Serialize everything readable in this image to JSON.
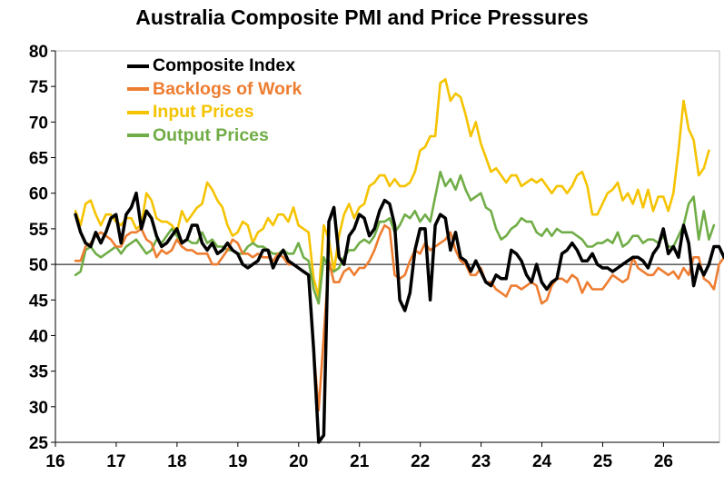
{
  "chart_data": {
    "type": "line",
    "title": "Australia Composite PMI and Price Pressures",
    "xlabel": "",
    "ylabel": "",
    "xlim": [
      2016.0,
      2026.92
    ],
    "ylim": [
      25,
      80
    ],
    "x_ticks": [
      2016,
      2017,
      2018,
      2019,
      2020,
      2021,
      2022,
      2023,
      2024,
      2025,
      2026
    ],
    "x_tick_labels": [
      "16",
      "17",
      "18",
      "19",
      "20",
      "21",
      "22",
      "23",
      "24",
      "25",
      "26"
    ],
    "y_ticks": [
      25,
      30,
      35,
      40,
      45,
      50,
      55,
      60,
      65,
      70,
      75,
      80
    ],
    "y_tick_labels": [
      "25",
      "30",
      "35",
      "40",
      "45",
      "50",
      "55",
      "60",
      "65",
      "70",
      "75",
      "80"
    ],
    "reference_line": 50,
    "grid": false,
    "legend_position": "top-left",
    "x_start": 2016.33,
    "x_step": 0.08333,
    "series": [
      {
        "name": "Composite Index",
        "color": "#000000",
        "values": [
          57.0,
          54.5,
          53.0,
          52.5,
          54.5,
          53.0,
          54.5,
          56.5,
          57.0,
          53.0,
          57.0,
          58.0,
          60.0,
          55.0,
          57.5,
          56.5,
          54.0,
          52.5,
          53.0,
          54.0,
          55.0,
          53.0,
          53.5,
          55.5,
          55.5,
          53.0,
          52.0,
          53.0,
          51.5,
          52.0,
          53.0,
          52.0,
          51.5,
          50.0,
          49.5,
          50.0,
          50.5,
          52.0,
          52.0,
          49.5,
          51.0,
          52.0,
          50.5,
          50.0,
          49.5,
          49.0,
          48.5,
          38.0,
          25.0,
          26.0,
          56.0,
          58.0,
          51.0,
          50.0,
          54.0,
          55.0,
          57.0,
          56.5,
          54.0,
          55.0,
          57.5,
          59.0,
          58.5,
          55.5,
          45.0,
          43.5,
          46.0,
          52.0,
          55.0,
          55.0,
          45.0,
          55.5,
          57.0,
          56.5,
          52.0,
          54.5,
          51.0,
          50.5,
          49.0,
          50.5,
          49.0,
          47.5,
          47.0,
          48.5,
          48.0,
          48.0,
          52.0,
          51.5,
          50.5,
          48.5,
          47.5,
          50.0,
          47.5,
          46.5,
          47.5,
          48.0,
          51.5,
          52.0,
          53.0,
          52.0,
          50.5,
          50.5,
          51.5,
          50.0,
          49.5,
          49.5,
          49.0,
          49.5,
          50.0,
          50.5,
          51.0,
          51.0,
          50.5,
          49.5,
          51.5,
          52.5,
          55.0,
          51.5,
          52.5,
          51.0,
          55.5,
          53.0,
          47.0,
          50.0,
          48.5,
          50.0,
          52.5,
          52.5,
          51.0
        ]
      },
      {
        "name": "Backlogs of Work",
        "color": "#ED7D31",
        "values": [
          50.5,
          50.5,
          52.5,
          53.0,
          54.0,
          54.5,
          54.0,
          53.5,
          52.5,
          52.5,
          54.0,
          54.5,
          54.5,
          55.0,
          53.5,
          53.0,
          51.0,
          52.0,
          51.5,
          52.0,
          53.5,
          52.5,
          52.0,
          52.0,
          51.5,
          51.5,
          51.5,
          50.0,
          50.0,
          51.0,
          52.0,
          53.5,
          53.0,
          51.5,
          51.5,
          51.0,
          51.5,
          51.0,
          51.0,
          50.5,
          51.5,
          51.0,
          50.0,
          50.0,
          49.5,
          49.0,
          48.5,
          38.0,
          29.5,
          40.0,
          50.5,
          47.5,
          47.5,
          49.0,
          49.5,
          48.5,
          49.5,
          49.5,
          50.5,
          52.0,
          54.0,
          55.5,
          55.0,
          48.5,
          48.0,
          48.5,
          50.5,
          52.0,
          51.5,
          53.0,
          52.0,
          52.5,
          53.0,
          53.5,
          54.5,
          52.0,
          50.5,
          50.0,
          48.5,
          48.5,
          49.5,
          47.5,
          47.5,
          46.5,
          46.0,
          45.5,
          47.0,
          47.0,
          46.5,
          47.0,
          47.5,
          47.0,
          44.5,
          45.0,
          47.0,
          48.0,
          48.0,
          47.5,
          48.5,
          48.0,
          46.0,
          47.5,
          46.5,
          46.5,
          46.5,
          47.5,
          48.5,
          48.0,
          47.5,
          48.0,
          51.0,
          49.5,
          49.0,
          48.5,
          48.5,
          49.5,
          49.0,
          48.5,
          49.0,
          48.0,
          49.5,
          48.5,
          51.0,
          51.0,
          48.0,
          47.5,
          46.5,
          50.0,
          51.0,
          50.5,
          51.0
        ]
      },
      {
        "name": "Input Prices",
        "color": "#F5C300",
        "values": [
          57.5,
          55.5,
          58.5,
          59.0,
          57.0,
          55.5,
          57.0,
          57.0,
          56.0,
          55.5,
          56.5,
          56.5,
          55.0,
          55.5,
          60.0,
          59.0,
          56.5,
          56.0,
          56.0,
          55.5,
          54.5,
          57.5,
          56.0,
          57.0,
          58.0,
          58.5,
          61.5,
          60.5,
          59.0,
          58.0,
          55.5,
          54.0,
          54.5,
          56.0,
          55.5,
          53.0,
          54.5,
          55.0,
          56.5,
          55.5,
          57.0,
          57.0,
          56.0,
          58.0,
          55.5,
          55.0,
          54.5,
          48.0,
          45.5,
          55.5,
          53.5,
          49.0,
          54.0,
          57.0,
          58.5,
          56.5,
          58.0,
          58.5,
          61.0,
          61.5,
          62.5,
          62.5,
          61.0,
          62.0,
          61.0,
          61.0,
          61.5,
          63.0,
          66.0,
          66.5,
          68.0,
          68.0,
          75.5,
          76.0,
          73.0,
          74.0,
          73.5,
          71.0,
          68.0,
          70.0,
          67.0,
          65.0,
          63.0,
          63.5,
          62.5,
          61.5,
          62.5,
          62.5,
          61.0,
          61.5,
          62.0,
          61.5,
          62.0,
          61.0,
          60.0,
          61.0,
          61.0,
          60.0,
          61.0,
          62.5,
          63.0,
          61.0,
          57.0,
          57.0,
          58.5,
          60.0,
          60.5,
          61.5,
          59.0,
          60.0,
          58.5,
          60.5,
          58.0,
          60.5,
          57.5,
          59.5,
          59.5,
          57.5,
          60.0,
          66.0,
          73.0,
          69.0,
          67.5,
          62.5,
          63.5,
          66.0
        ]
      },
      {
        "name": "Output Prices",
        "color": "#70AD47",
        "values": [
          48.5,
          49.0,
          52.0,
          52.5,
          51.5,
          51.0,
          51.5,
          52.0,
          52.5,
          51.5,
          52.5,
          53.0,
          53.5,
          52.5,
          51.5,
          52.0,
          53.5,
          53.0,
          54.0,
          55.0,
          54.0,
          53.0,
          53.5,
          53.0,
          53.0,
          54.5,
          53.0,
          53.5,
          52.5,
          52.5,
          52.0,
          52.0,
          51.5,
          51.5,
          52.5,
          53.0,
          52.5,
          52.5,
          52.0,
          51.5,
          51.5,
          52.0,
          51.5,
          51.5,
          53.0,
          51.0,
          50.5,
          46.5,
          44.5,
          51.0,
          49.5,
          49.0,
          49.5,
          51.0,
          52.0,
          52.0,
          53.0,
          53.5,
          53.0,
          54.0,
          56.0,
          56.0,
          56.5,
          54.5,
          55.5,
          57.0,
          56.5,
          57.5,
          56.0,
          57.0,
          56.0,
          59.5,
          63.0,
          61.0,
          62.0,
          60.5,
          62.5,
          60.5,
          59.0,
          59.5,
          60.0,
          58.0,
          57.5,
          55.0,
          53.5,
          54.0,
          55.0,
          55.5,
          56.5,
          56.0,
          56.0,
          54.5,
          54.0,
          55.0,
          54.0,
          55.0,
          54.5,
          54.5,
          54.5,
          54.0,
          53.5,
          52.5,
          52.5,
          53.0,
          53.0,
          53.5,
          53.0,
          54.5,
          52.5,
          53.0,
          54.0,
          54.0,
          53.0,
          53.5,
          53.5,
          53.0,
          54.0,
          52.5,
          52.5,
          54.0,
          55.5,
          58.5,
          59.5,
          53.5,
          57.5,
          53.5,
          55.5
        ]
      }
    ]
  }
}
